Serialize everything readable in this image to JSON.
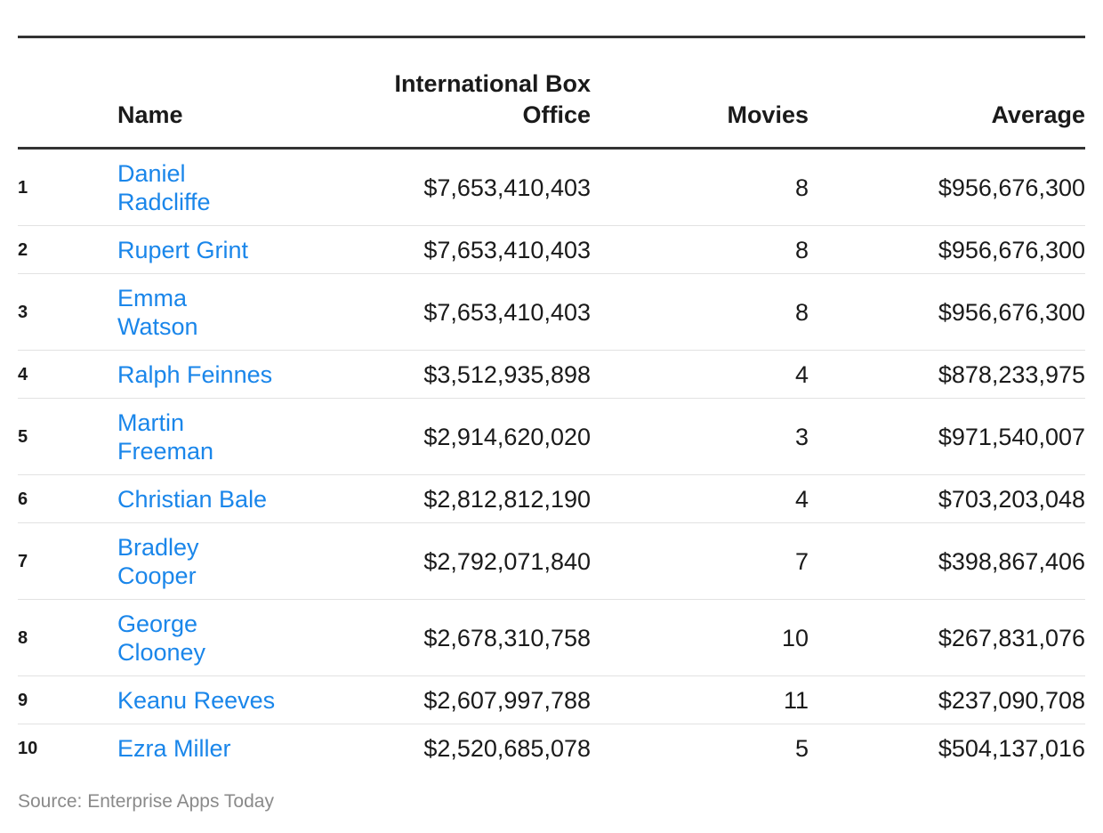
{
  "chart_data": {
    "type": "table",
    "columns": [
      "",
      "Name",
      "International Box Office",
      "Movies",
      "Average"
    ],
    "rows": [
      {
        "rank": "1",
        "name_lines": [
          "Daniel",
          "Radcliffe"
        ],
        "box_office": "$7,653,410,403",
        "movies": "8",
        "average": "$956,676,300"
      },
      {
        "rank": "2",
        "name_lines": [
          "Rupert Grint"
        ],
        "box_office": "$7,653,410,403",
        "movies": "8",
        "average": "$956,676,300"
      },
      {
        "rank": "3",
        "name_lines": [
          "Emma",
          "Watson"
        ],
        "box_office": "$7,653,410,403",
        "movies": "8",
        "average": "$956,676,300"
      },
      {
        "rank": "4",
        "name_lines": [
          "Ralph Feinnes"
        ],
        "box_office": "$3,512,935,898",
        "movies": "4",
        "average": "$878,233,975"
      },
      {
        "rank": "5",
        "name_lines": [
          "Martin",
          "Freeman"
        ],
        "box_office": "$2,914,620,020",
        "movies": "3",
        "average": "$971,540,007"
      },
      {
        "rank": "6",
        "name_lines": [
          "Christian Bale"
        ],
        "box_office": "$2,812,812,190",
        "movies": "4",
        "average": "$703,203,048"
      },
      {
        "rank": "7",
        "name_lines": [
          "Bradley",
          "Cooper"
        ],
        "box_office": "$2,792,071,840",
        "movies": "7",
        "average": "$398,867,406"
      },
      {
        "rank": "8",
        "name_lines": [
          "George",
          "Clooney"
        ],
        "box_office": "$2,678,310,758",
        "movies": "10",
        "average": "$267,831,076"
      },
      {
        "rank": "9",
        "name_lines": [
          "Keanu Reeves"
        ],
        "box_office": "$2,607,997,788",
        "movies": "11",
        "average": "$237,090,708"
      },
      {
        "rank": "10",
        "name_lines": [
          "Ezra Miller"
        ],
        "box_office": "$2,520,685,078",
        "movies": "5",
        "average": "$504,137,016"
      }
    ]
  },
  "header": {
    "rank": "",
    "name": "Name",
    "box_office_lines": [
      "International Box",
      "Office"
    ],
    "movies": "Movies",
    "average": "Average"
  },
  "source": "Source: Enterprise Apps Today",
  "colors": {
    "link": "#1a86ea",
    "text": "#1a1a1a",
    "rule": "#333333",
    "row_divider": "#e2e2e2",
    "source": "#8a8a8a"
  }
}
